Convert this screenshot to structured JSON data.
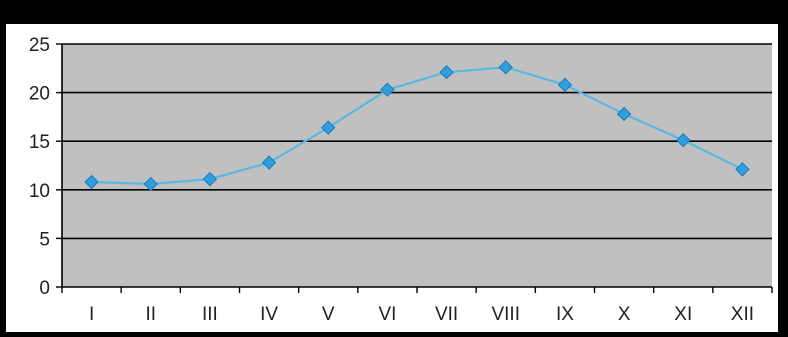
{
  "chart_data": {
    "type": "line",
    "title": "",
    "xlabel": "",
    "ylabel": "",
    "categories": [
      "I",
      "II",
      "III",
      "IV",
      "V",
      "VI",
      "VII",
      "VIII",
      "IX",
      "X",
      "XI",
      "XII"
    ],
    "series": [
      {
        "values": [
          10.8,
          10.6,
          11.1,
          12.8,
          16.4,
          20.3,
          22.1,
          22.6,
          20.8,
          17.8,
          15.1,
          12.1
        ]
      }
    ],
    "ylim": [
      0,
      25
    ],
    "yticks": [
      0,
      5,
      10,
      15,
      20,
      25
    ],
    "grid": true,
    "legend": "none",
    "colors": {
      "line": "#5bb7e3",
      "marker": "#2f9ede",
      "marker_edge": "#1a7dbf",
      "plot_background": "#c0c0c0",
      "gridline": "#000000",
      "page_background": "#ffffff",
      "border": "#000000"
    }
  }
}
